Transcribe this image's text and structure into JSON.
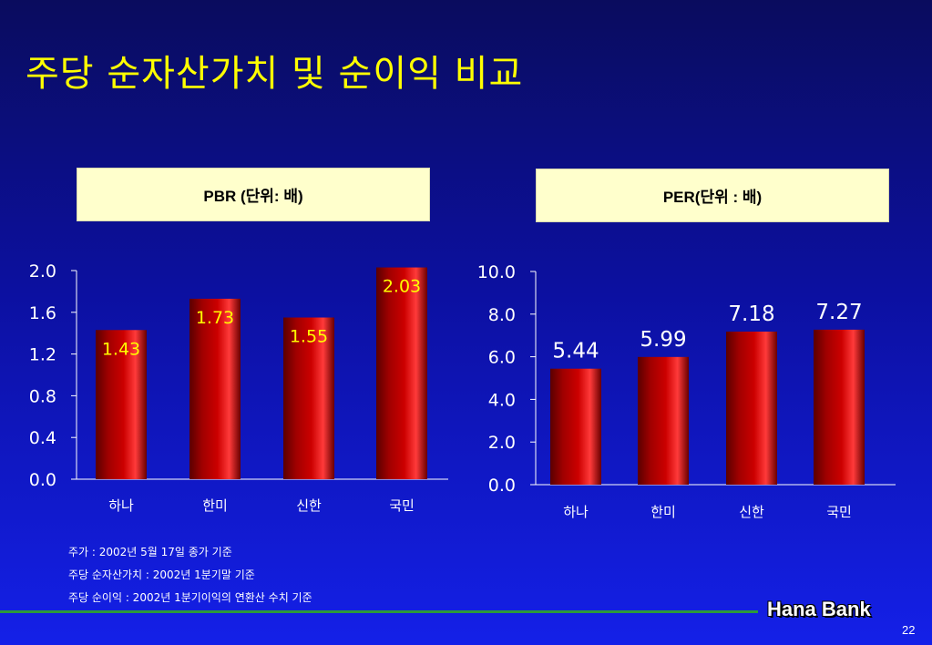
{
  "slide": {
    "title": "주당 순자산가치 및 순이익 비교",
    "notes": [
      "주가 : 2002년 5월 17일 종가 기준",
      "주당 순자산가치 : 2002년 1분기말 기준",
      "주당 순이익 : 2002년 1분기이익의 연환산  수치 기준"
    ],
    "brand": "Hana Bank",
    "page_number": "22"
  },
  "colors": {
    "background_top": "#0a0c5e",
    "background_bottom": "#1420e8",
    "title": "#ffff00",
    "bar": "#cc0000",
    "header_box": "#ffffcc",
    "footer_line": "#2c9a3a"
  },
  "chart_data": [
    {
      "type": "bar",
      "title": "PBR (단위: 배)",
      "categories": [
        "하나",
        "한미",
        "신한",
        "국민"
      ],
      "values": [
        1.43,
        1.73,
        1.55,
        2.03
      ],
      "value_labels": [
        "1.43",
        "1.73",
        "1.55",
        "2.03"
      ],
      "ylim": [
        0,
        2.0
      ],
      "yticks": [
        "0.0",
        "0.4",
        "0.8",
        "1.2",
        "1.6",
        "2.0"
      ],
      "xlabel": "",
      "ylabel": "",
      "grid": false,
      "data_label_position": "inside-top",
      "data_label_color": "#ffff00"
    },
    {
      "type": "bar",
      "title": "PER(단위 : 배)",
      "categories": [
        "하나",
        "한미",
        "신한",
        "국민"
      ],
      "values": [
        5.44,
        5.99,
        7.18,
        7.27
      ],
      "value_labels": [
        "5.44",
        "5.99",
        "7.18",
        "7.27"
      ],
      "ylim": [
        0,
        10.0
      ],
      "yticks": [
        "0.0",
        "2.0",
        "4.0",
        "6.0",
        "8.0",
        "10.0"
      ],
      "xlabel": "",
      "ylabel": "",
      "grid": false,
      "data_label_position": "above",
      "data_label_color": "#ffffff"
    }
  ]
}
